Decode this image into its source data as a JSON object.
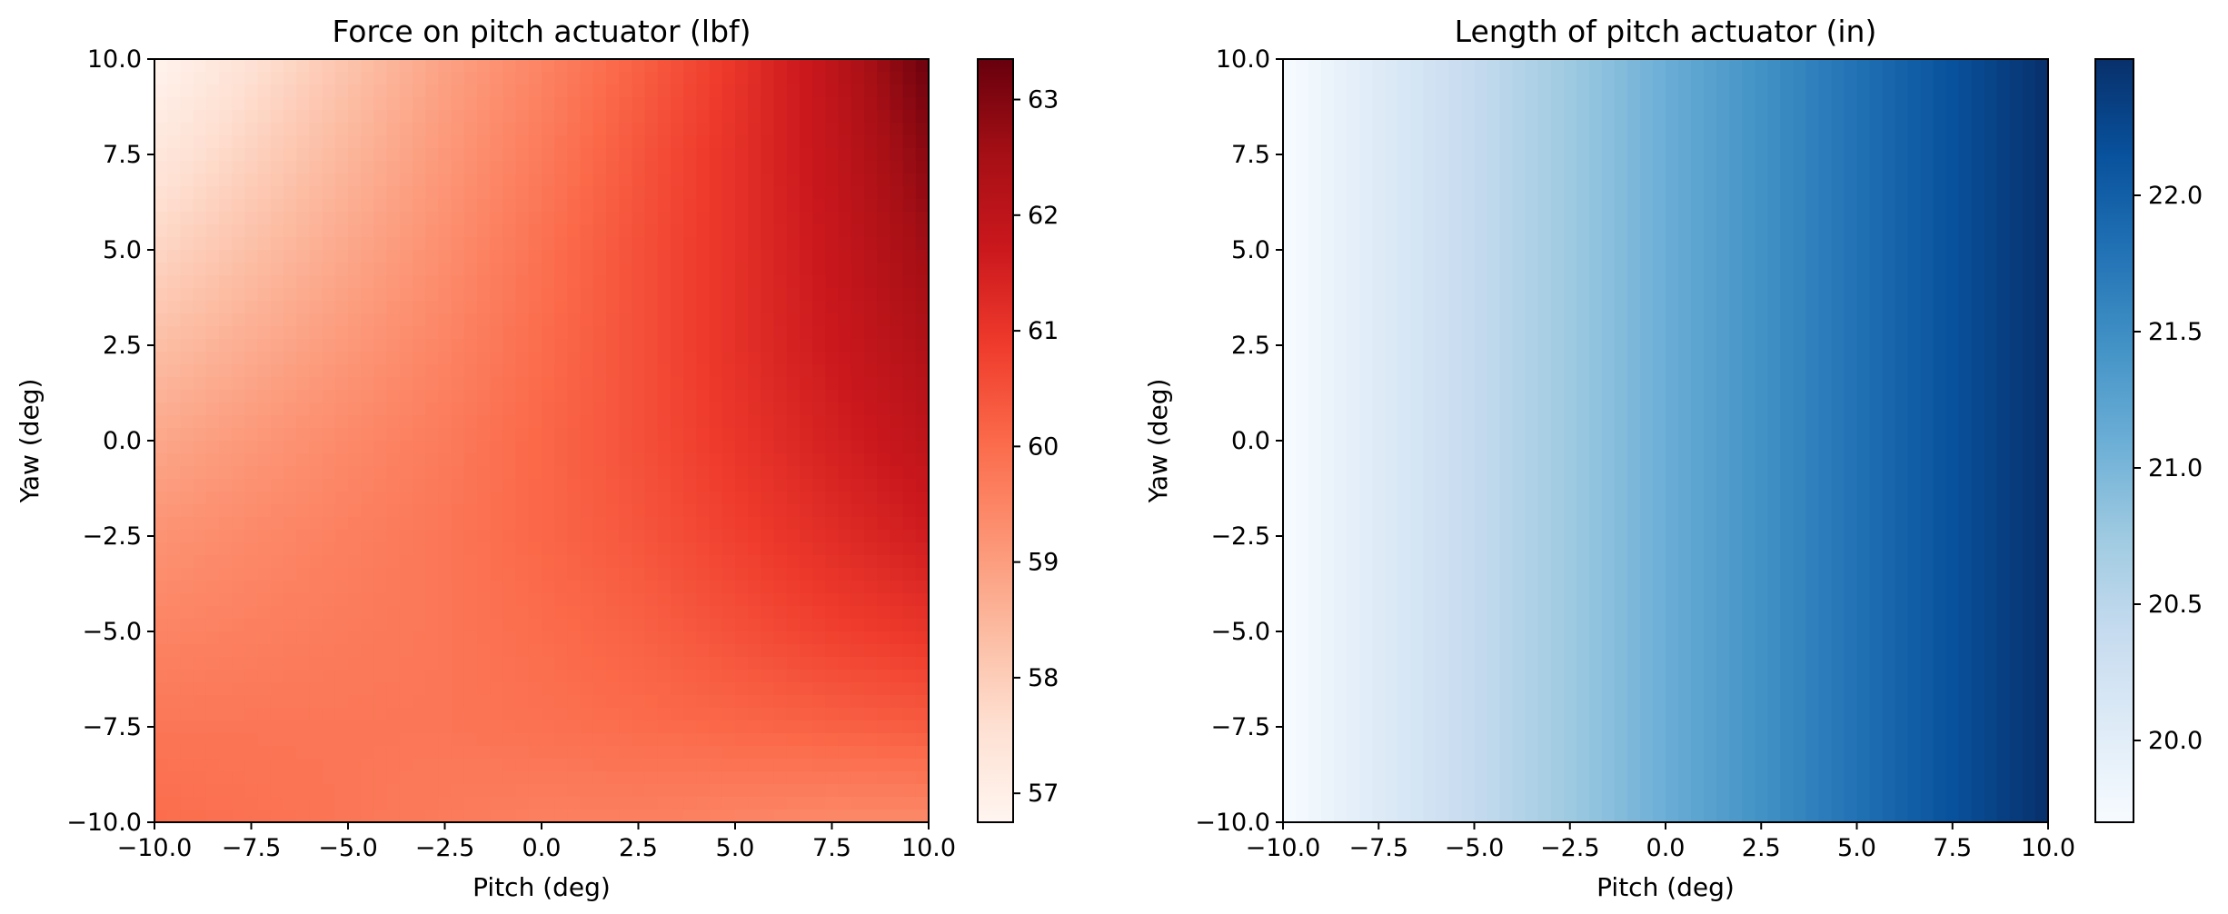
{
  "chart_data": [
    {
      "type": "heatmap",
      "title": "Force on pitch actuator (lbf)",
      "xlabel": "Pitch (deg)",
      "ylabel": "Yaw (deg)",
      "xlim": [
        -10,
        10
      ],
      "ylim": [
        -10,
        10
      ],
      "x_ticks": [
        "−10.0",
        "−7.5",
        "−5.0",
        "−2.5",
        "0.0",
        "2.5",
        "5.0",
        "7.5",
        "10.0"
      ],
      "y_ticks": [
        "−10.0",
        "−7.5",
        "−5.0",
        "−2.5",
        "0.0",
        "2.5",
        "5.0",
        "7.5",
        "10.0"
      ],
      "x": [
        -10,
        -7.5,
        -5,
        -2.5,
        0,
        2.5,
        5,
        7.5,
        10
      ],
      "y": [
        10,
        7.5,
        5,
        2.5,
        0,
        -2.5,
        -5,
        -7.5,
        -10
      ],
      "z": [
        [
          56.8,
          57.5,
          58.2,
          58.9,
          59.5,
          60.2,
          61.0,
          62.0,
          63.3
        ],
        [
          57.3,
          57.9,
          58.5,
          59.1,
          59.7,
          60.4,
          61.1,
          61.9,
          62.9
        ],
        [
          57.8,
          58.3,
          58.8,
          59.3,
          59.9,
          60.5,
          61.1,
          61.8,
          62.6
        ],
        [
          58.3,
          58.7,
          59.1,
          59.5,
          60.0,
          60.5,
          61.1,
          61.7,
          62.3
        ],
        [
          58.8,
          59.1,
          59.4,
          59.7,
          60.1,
          60.5,
          61.0,
          61.5,
          62.0
        ],
        [
          59.2,
          59.4,
          59.6,
          59.8,
          60.1,
          60.4,
          60.8,
          61.2,
          61.6
        ],
        [
          59.5,
          59.6,
          59.7,
          59.8,
          60.0,
          60.2,
          60.5,
          60.8,
          61.0
        ],
        [
          59.8,
          59.8,
          59.8,
          59.8,
          59.9,
          60.0,
          60.1,
          60.2,
          60.3
        ],
        [
          60.0,
          59.9,
          59.8,
          59.7,
          59.6,
          59.6,
          59.5,
          59.4,
          59.4
        ]
      ],
      "colormap": "Reds",
      "colorbar": {
        "vmin": 56.75,
        "vmax": 63.35,
        "ticks": [
          57,
          58,
          59,
          60,
          61,
          62,
          63
        ],
        "tick_labels": [
          "57",
          "58",
          "59",
          "60",
          "61",
          "62",
          "63"
        ]
      }
    },
    {
      "type": "heatmap",
      "title": "Length of pitch actuator (in)",
      "xlabel": "Pitch (deg)",
      "ylabel": "Yaw (deg)",
      "xlim": [
        -10,
        10
      ],
      "ylim": [
        -10,
        10
      ],
      "x_ticks": [
        "−10.0",
        "−7.5",
        "−5.0",
        "−2.5",
        "0.0",
        "2.5",
        "5.0",
        "7.5",
        "10.0"
      ],
      "y_ticks": [
        "−10.0",
        "−7.5",
        "−5.0",
        "−2.5",
        "0.0",
        "2.5",
        "5.0",
        "7.5",
        "10.0"
      ],
      "x": [
        -10,
        -7.5,
        -5,
        -2.5,
        0,
        2.5,
        5,
        7.5,
        10
      ],
      "y": [
        10,
        7.5,
        5,
        2.5,
        0,
        -2.5,
        -5,
        -7.5,
        -10
      ],
      "z": [
        [
          19.7,
          20.05,
          20.4,
          20.75,
          21.1,
          21.45,
          21.8,
          22.15,
          22.5
        ],
        [
          19.7,
          20.05,
          20.4,
          20.75,
          21.1,
          21.45,
          21.8,
          22.15,
          22.5
        ],
        [
          19.7,
          20.05,
          20.4,
          20.75,
          21.1,
          21.45,
          21.8,
          22.15,
          22.5
        ],
        [
          19.7,
          20.05,
          20.4,
          20.75,
          21.1,
          21.45,
          21.8,
          22.15,
          22.5
        ],
        [
          19.7,
          20.05,
          20.4,
          20.75,
          21.1,
          21.45,
          21.8,
          22.15,
          22.5
        ],
        [
          19.7,
          20.05,
          20.4,
          20.75,
          21.1,
          21.45,
          21.8,
          22.15,
          22.5
        ],
        [
          19.7,
          20.05,
          20.4,
          20.75,
          21.1,
          21.45,
          21.8,
          22.15,
          22.5
        ],
        [
          19.7,
          20.05,
          20.4,
          20.75,
          21.1,
          21.45,
          21.8,
          22.15,
          22.5
        ],
        [
          19.7,
          20.05,
          20.4,
          20.75,
          21.1,
          21.45,
          21.8,
          22.15,
          22.5
        ]
      ],
      "colormap": "Blues",
      "colorbar": {
        "vmin": 19.7,
        "vmax": 22.5,
        "ticks": [
          20.0,
          20.5,
          21.0,
          21.5,
          22.0
        ],
        "tick_labels": [
          "20.0",
          "20.5",
          "21.0",
          "21.5",
          "22.0"
        ]
      }
    }
  ]
}
